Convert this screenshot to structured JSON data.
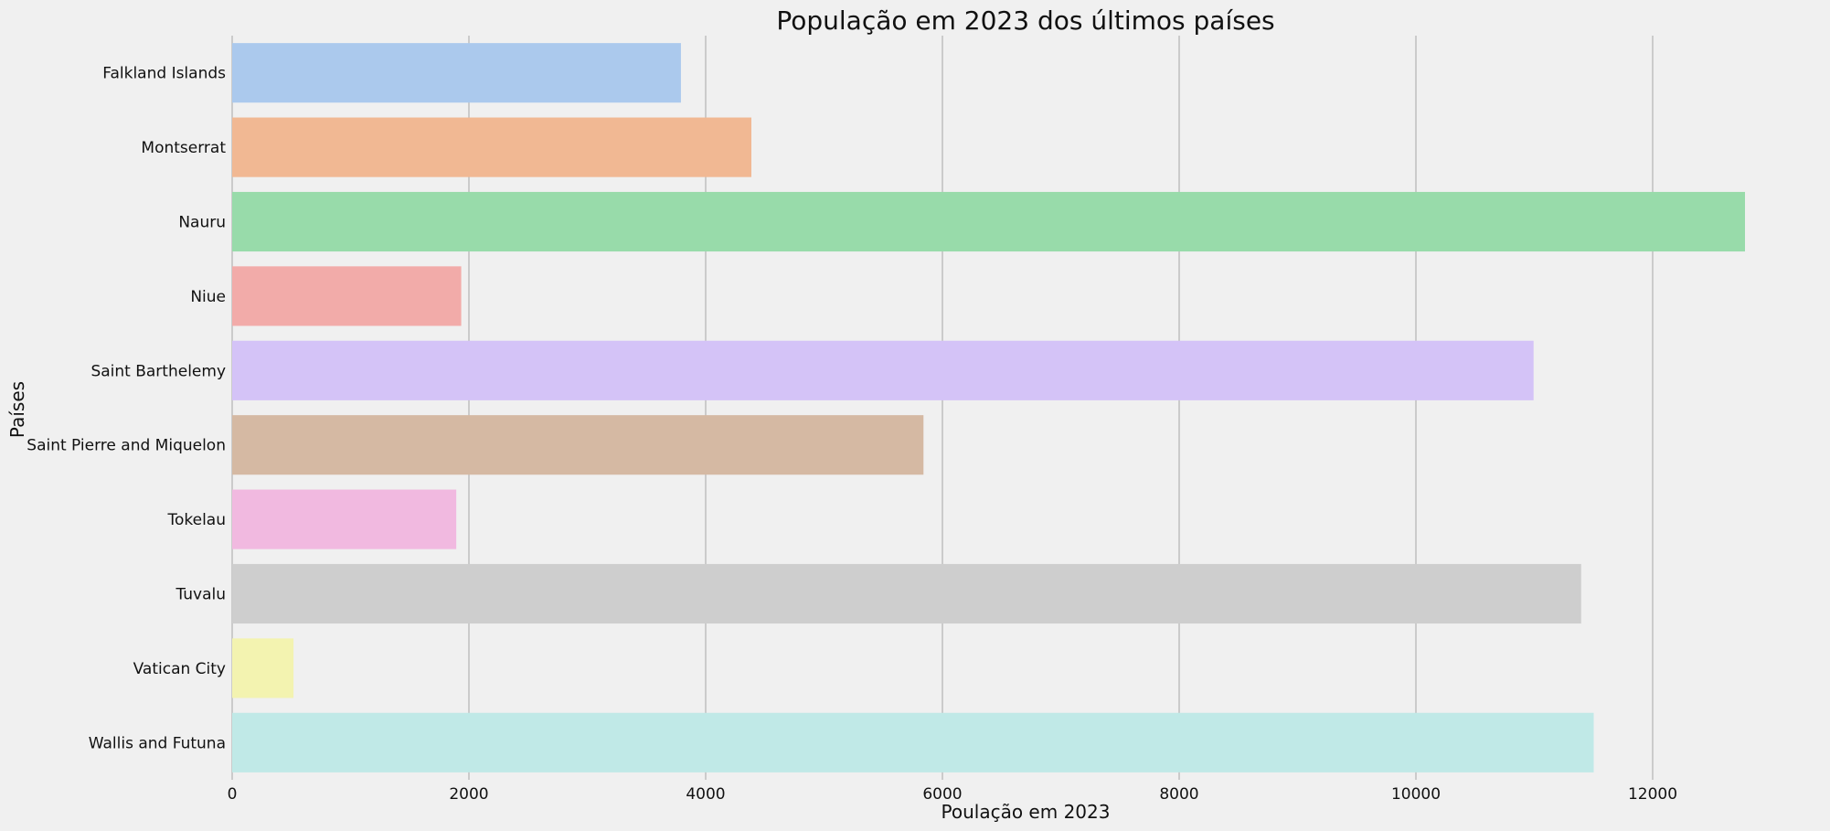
{
  "chart_data": {
    "type": "bar",
    "orientation": "horizontal",
    "title": "População em 2023 dos últimos países",
    "xlabel": "Poulação em 2023",
    "ylabel": "Países",
    "categories": [
      "Falkland Islands",
      "Montserrat",
      "Nauru",
      "Niue",
      "Saint Barthelemy",
      "Saint Pierre and Miquelon",
      "Tokelau",
      "Tuvalu",
      "Vatican City",
      "Wallis and Futuna"
    ],
    "values": [
      3791,
      4386,
      12780,
      1935,
      10994,
      5840,
      1893,
      11396,
      518,
      11502
    ],
    "colors": [
      "#abc9ed",
      "#f1b893",
      "#98dbaa",
      "#f2aba9",
      "#d4c3f7",
      "#d5b9a3",
      "#f1b9e0",
      "#cecece",
      "#f3f3b0",
      "#c0e9e7"
    ],
    "xticks": [
      0,
      2000,
      4000,
      6000,
      8000,
      10000,
      12000
    ],
    "xlim": [
      0,
      12780
    ],
    "grid": "vertical",
    "legend": "none"
  }
}
